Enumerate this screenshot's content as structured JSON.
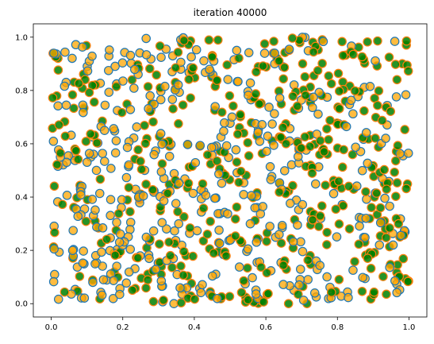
{
  "chart_data": {
    "type": "scatter",
    "title": "iteration 40000",
    "xlabel": "",
    "ylabel": "",
    "xlim": [
      -0.05,
      1.05
    ],
    "ylim": [
      -0.05,
      1.05
    ],
    "x_ticks": [
      0.0,
      0.2,
      0.4,
      0.6,
      0.8,
      1.0
    ],
    "x_tick_labels": [
      "0.0",
      "0.2",
      "0.4",
      "0.6",
      "0.8",
      "1.0"
    ],
    "y_ticks": [
      0.0,
      0.2,
      0.4,
      0.6,
      0.8,
      1.0
    ],
    "y_tick_labels": [
      "0.0",
      "0.2",
      "0.4",
      "0.6",
      "0.8",
      "1.0"
    ],
    "grid": false,
    "legend": "none",
    "n_points": 900,
    "colors": {
      "orange_face": "#ffa500",
      "orange_edge": "#1f77b4",
      "green_face": "#008000",
      "green_edge": "#ff7f0e"
    }
  }
}
